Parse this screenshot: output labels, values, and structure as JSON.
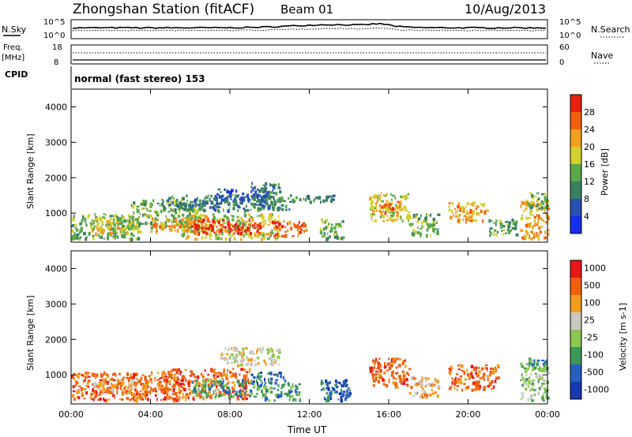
{
  "header": {
    "title": "Zhongshan Station (fitACF)",
    "beam": "Beam 01",
    "date": "10/Aug/2013"
  },
  "strip_nsky": {
    "left_label": "N.Sky",
    "right_label": "N.Search",
    "left_ticks": [
      "10^5",
      "10^0"
    ],
    "right_ticks": [
      "10^5",
      "10^0"
    ]
  },
  "strip_freq": {
    "left_label_1": "Freq.",
    "left_label_2": "[MHz]",
    "right_label": "Nave",
    "left_ticks": [
      "18",
      "8"
    ],
    "right_ticks": [
      "60",
      "0"
    ]
  },
  "strip_cpid": {
    "label": "CPID",
    "mode_text": "normal (fast stereo) 153"
  },
  "colors": {
    "power_scale": [
      "#1530e8",
      "#2850b0",
      "#3a8060",
      "#5aa84a",
      "#d4d030",
      "#f0a020",
      "#f06010",
      "#e82010"
    ],
    "velocity_scale": [
      "#e81818",
      "#f06010",
      "#f49c20",
      "#c8c8c0",
      "#8cc850",
      "#3c9858",
      "#2860c0",
      "#1838b0"
    ]
  },
  "chart_data": [
    {
      "type": "heatmap",
      "title": "",
      "xlabel": "",
      "ylabel": "Slant Range [km]",
      "xlim": [
        0,
        24
      ],
      "ylim": [
        180,
        4500
      ],
      "y_ticks": [
        "1000",
        "2000",
        "3000",
        "4000"
      ],
      "x_ticks": [
        "00:00",
        "04:00",
        "08:00",
        "12:00",
        "16:00",
        "20:00",
        "00:00"
      ],
      "colorbar": {
        "label": "Power [dB]",
        "ticks": [
          "4",
          "8",
          "12",
          "16",
          "20",
          "24",
          "28"
        ],
        "range": [
          0,
          32
        ]
      },
      "grid": false,
      "regions": [
        {
          "t0": 0.0,
          "t1": 3.5,
          "r0": 300,
          "r1": 1000,
          "level": 10
        },
        {
          "t0": 1.0,
          "t1": 3.5,
          "r0": 450,
          "r1": 900,
          "level": 17
        },
        {
          "t0": 3.0,
          "t1": 6.5,
          "r0": 600,
          "r1": 1400,
          "level": 12
        },
        {
          "t0": 4.0,
          "t1": 7.0,
          "r0": 500,
          "r1": 900,
          "level": 20
        },
        {
          "t0": 5.5,
          "t1": 10.5,
          "r0": 300,
          "r1": 1000,
          "level": 16
        },
        {
          "t0": 6.0,
          "t1": 9.5,
          "r0": 450,
          "r1": 850,
          "level": 26
        },
        {
          "t0": 9.0,
          "t1": 10.5,
          "r0": 1200,
          "r1": 1900,
          "level": 7
        },
        {
          "t0": 7.0,
          "t1": 10.0,
          "r0": 1300,
          "r1": 1700,
          "level": 5
        },
        {
          "t0": 10.0,
          "t1": 11.8,
          "r0": 350,
          "r1": 800,
          "level": 22
        },
        {
          "t0": 4.5,
          "t1": 11.0,
          "r0": 1100,
          "r1": 1550,
          "level": 9
        },
        {
          "t0": 11.0,
          "t1": 13.3,
          "r0": 1350,
          "r1": 1550,
          "level": 6
        },
        {
          "t0": 12.5,
          "t1": 13.7,
          "r0": 300,
          "r1": 850,
          "level": 13
        },
        {
          "t0": 15.0,
          "t1": 17.0,
          "r0": 800,
          "r1": 1600,
          "level": 16
        },
        {
          "t0": 15.5,
          "t1": 16.5,
          "r0": 1000,
          "r1": 1350,
          "level": 22
        },
        {
          "t0": 17.0,
          "t1": 18.5,
          "r0": 400,
          "r1": 1000,
          "level": 12
        },
        {
          "t0": 19.0,
          "t1": 21.0,
          "r0": 800,
          "r1": 1350,
          "level": 18
        },
        {
          "t0": 21.0,
          "t1": 22.5,
          "r0": 400,
          "r1": 850,
          "level": 10
        },
        {
          "t0": 22.6,
          "t1": 24.0,
          "r0": 300,
          "r1": 1400,
          "level": 18
        },
        {
          "t0": 23.0,
          "t1": 24.0,
          "r0": 1100,
          "r1": 1600,
          "level": 11
        }
      ]
    },
    {
      "type": "heatmap",
      "title": "",
      "xlabel": "Time UT",
      "ylabel": "Slant Range [km]",
      "xlim": [
        0,
        24
      ],
      "ylim": [
        180,
        4500
      ],
      "y_ticks": [
        "1000",
        "2000",
        "3000",
        "4000"
      ],
      "x_ticks": [
        "00:00",
        "04:00",
        "08:00",
        "12:00",
        "16:00",
        "20:00",
        "00:00"
      ],
      "colorbar": {
        "label": "Velocity [m s-1]",
        "ticks": [
          "1000",
          "500",
          "100",
          "25",
          "-25",
          "-100",
          "-500",
          "-1000"
        ]
      },
      "grid": false,
      "regions": [
        {
          "t0": 0.0,
          "t1": 5.5,
          "r0": 300,
          "r1": 1100,
          "level": 1
        },
        {
          "t0": 1.0,
          "t1": 4.0,
          "r0": 500,
          "r1": 900,
          "level": 2
        },
        {
          "t0": 4.5,
          "t1": 9.0,
          "r0": 350,
          "r1": 1200,
          "level": 1
        },
        {
          "t0": 6.0,
          "t1": 9.5,
          "r0": 400,
          "r1": 900,
          "level": 5
        },
        {
          "t0": 7.5,
          "t1": 10.5,
          "r0": 1300,
          "r1": 1800,
          "level": 3
        },
        {
          "t0": 9.0,
          "t1": 10.8,
          "r0": 800,
          "r1": 1100,
          "level": 6
        },
        {
          "t0": 9.5,
          "t1": 11.5,
          "r0": 300,
          "r1": 800,
          "level": 5
        },
        {
          "t0": 12.5,
          "t1": 14.0,
          "r0": 300,
          "r1": 900,
          "level": 6
        },
        {
          "t0": 13.2,
          "t1": 13.8,
          "r0": 600,
          "r1": 900,
          "level": 7
        },
        {
          "t0": 15.0,
          "t1": 17.0,
          "r0": 700,
          "r1": 1500,
          "level": 1
        },
        {
          "t0": 17.0,
          "t1": 18.5,
          "r0": 400,
          "r1": 1000,
          "level": 2
        },
        {
          "t0": 19.0,
          "t1": 21.5,
          "r0": 600,
          "r1": 1300,
          "level": 1
        },
        {
          "t0": 22.6,
          "t1": 24.0,
          "r0": 300,
          "r1": 1400,
          "level": 4
        },
        {
          "t0": 23.0,
          "t1": 24.0,
          "r0": 1100,
          "r1": 1500,
          "level": 5
        }
      ]
    }
  ]
}
